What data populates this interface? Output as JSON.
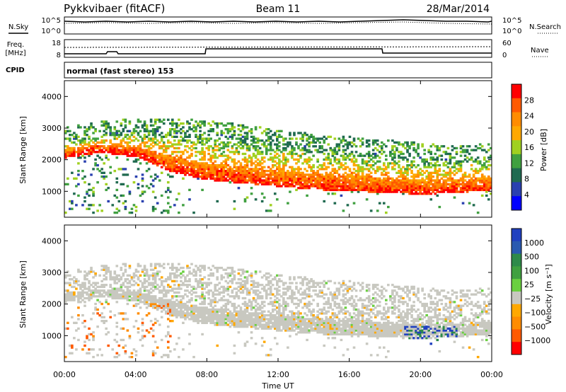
{
  "header": {
    "station": "Pykkvibaer (fitACF)",
    "beam": "Beam 11",
    "date": "28/Mar/2014"
  },
  "panels": {
    "noise": {
      "left_label": "N.Sky",
      "right_label": "N.Search",
      "left_ticks": [
        "10^5",
        "10^0"
      ],
      "right_ticks": [
        "10^5",
        "10^0"
      ]
    },
    "freq": {
      "left_label_1": "Freq.",
      "left_label_2": "[MHz]",
      "left_ticks": [
        "18",
        "8"
      ],
      "right_label": "Nave",
      "right_ticks": [
        "60",
        "0"
      ]
    },
    "cpid": {
      "label": "CPID",
      "text": "normal (fast stereo) 153"
    }
  },
  "colorbars": {
    "power": {
      "label": "Power [dB]",
      "ticks": [
        "28",
        "24",
        "20",
        "16",
        "12",
        "8",
        "4"
      ],
      "colors": [
        "#ff0000",
        "#ff5a00",
        "#ff8c00",
        "#ffa800",
        "#a0d020",
        "#40a040",
        "#206a50",
        "#2a40b0",
        "#0000ff"
      ]
    },
    "velocity": {
      "label": "Velocity [m s⁻¹]",
      "ticks": [
        "1000",
        "500",
        "100",
        "25",
        "−25",
        "−100",
        "−500",
        "−1000"
      ],
      "colors": [
        "#2040c0",
        "#2a5ab0",
        "#2e8a4a",
        "#40a040",
        "#6ad040",
        "#c8c8c0",
        "#ffa800",
        "#ff8c00",
        "#ff5a00",
        "#ff0000"
      ]
    }
  },
  "chart_data": [
    {
      "type": "heatmap",
      "title": "Power",
      "xlabel": "Time UT",
      "ylabel": "Slant Range [km]",
      "x_ticks": [
        "00:00",
        "04:00",
        "08:00",
        "12:00",
        "16:00",
        "20:00",
        "00:00"
      ],
      "y_ticks": [
        "1000",
        "2000",
        "3000",
        "4000"
      ],
      "xlim_hours": [
        0,
        24
      ],
      "ylim_km": [
        180,
        4500
      ],
      "colorbar": "Power [dB]",
      "echo_bands": [
        {
          "name": "main_band",
          "points_hours_km": [
            [
              0,
              2150
            ],
            [
              2,
              2320
            ],
            [
              4,
              2180
            ],
            [
              6,
              1700
            ],
            [
              8,
              1450
            ],
            [
              10,
              1350
            ],
            [
              12,
              1250
            ],
            [
              14,
              1150
            ],
            [
              16,
              1100
            ],
            [
              18,
              1050
            ],
            [
              20,
              1000
            ],
            [
              22,
              1050
            ],
            [
              24,
              1150
            ]
          ],
          "power_db": 24
        },
        {
          "name": "upper_band",
          "points_hours_km": [
            [
              0,
              2600
            ],
            [
              2,
              2800
            ],
            [
              4,
              2900
            ],
            [
              6,
              2900
            ],
            [
              8,
              2800
            ],
            [
              10,
              2700
            ],
            [
              12,
              2500
            ],
            [
              14,
              2400
            ],
            [
              16,
              2300
            ],
            [
              18,
              2200
            ],
            [
              20,
              2100
            ],
            [
              22,
              2000
            ],
            [
              24,
              2100
            ]
          ],
          "power_db": 16
        }
      ]
    },
    {
      "type": "heatmap",
      "title": "Velocity",
      "xlabel": "Time UT",
      "ylabel": "Slant Range [km]",
      "x_ticks": [
        "00:00",
        "04:00",
        "08:00",
        "12:00",
        "16:00",
        "20:00",
        "00:00"
      ],
      "y_ticks": [
        "1000",
        "2000",
        "3000",
        "4000"
      ],
      "xlim_hours": [
        0,
        24
      ],
      "ylim_km": [
        180,
        4500
      ],
      "colorbar": "Velocity [m s⁻¹]",
      "dominant_velocity_ms": 0,
      "features": [
        {
          "name": "ground_scatter",
          "velocity_ms": 0
        },
        {
          "name": "negative_velocity_echoes_0-6h",
          "velocity_ms": -300
        },
        {
          "name": "positive_velocity_echoes_19-22h",
          "velocity_ms": 800
        }
      ]
    }
  ]
}
